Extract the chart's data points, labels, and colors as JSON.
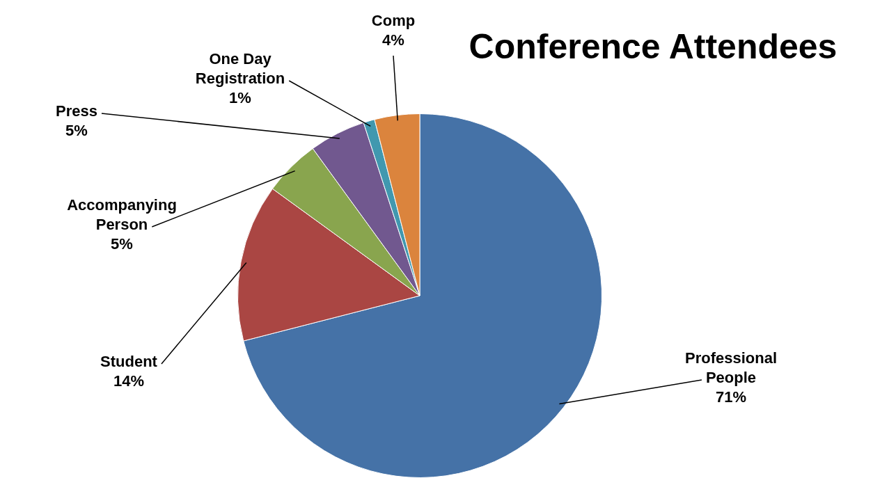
{
  "chart_data": {
    "type": "pie",
    "title": "Conference Attendees",
    "categories": [
      "Professional People",
      "Student",
      "Accompanying Person",
      "Press",
      "One Day Registration",
      "Comp"
    ],
    "values": [
      71,
      14,
      5,
      5,
      1,
      4
    ],
    "colors": [
      "#4572a7",
      "#aa4643",
      "#89a54e",
      "#71588f",
      "#4198af",
      "#db843d"
    ],
    "value_labels": [
      "71%",
      "14%",
      "5%",
      "5%",
      "1%",
      "4%"
    ],
    "legend": false
  }
}
